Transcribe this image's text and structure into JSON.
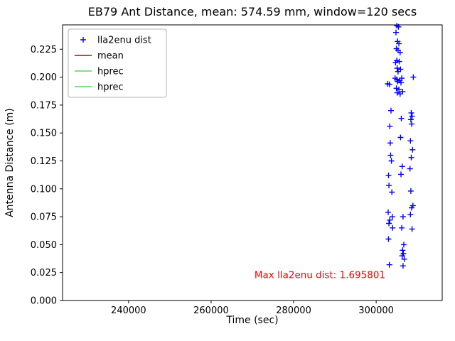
{
  "chart_data": {
    "type": "scatter",
    "title": "EB79 Ant Distance, mean: 574.59 mm, window=120 secs",
    "xlabel": "Time (sec)",
    "ylabel": "Antenna Distance (m)",
    "xlim": [
      224000,
      316000
    ],
    "ylim": [
      0,
      0.2468
    ],
    "xticks": [
      240000,
      260000,
      280000,
      300000
    ],
    "yticks": [
      0.0,
      0.025,
      0.05,
      0.075,
      0.1,
      0.125,
      0.15,
      0.175,
      0.2,
      0.225
    ],
    "grid": false,
    "marker": "plus",
    "marker_color": "#0000ff",
    "legend_position": "upper-left",
    "legend": [
      {
        "label": "lla2enu dist",
        "marker": "plus",
        "color": "#0000ff"
      },
      {
        "label": "mean",
        "marker": "line",
        "color": "#8b1a1a"
      },
      {
        "label": "hprec",
        "marker": "line",
        "color": "#5fd35f"
      },
      {
        "label": "hprec",
        "marker": "line",
        "color": "#5fd35f"
      }
    ],
    "annotation": {
      "text": "Max lla2enu dist: 1.695801",
      "color": "#ff0000",
      "x": 270500,
      "y": 0.02
    },
    "points": [
      [
        302800,
        0.194
      ],
      [
        303200,
        0.1935
      ],
      [
        303000,
        0.112
      ],
      [
        303100,
        0.103
      ],
      [
        302900,
        0.079
      ],
      [
        303300,
        0.072
      ],
      [
        303100,
        0.069
      ],
      [
        303000,
        0.055
      ],
      [
        303200,
        0.032
      ],
      [
        303400,
        0.141
      ],
      [
        303500,
        0.13
      ],
      [
        303600,
        0.17
      ],
      [
        303300,
        0.156
      ],
      [
        303800,
        0.097
      ],
      [
        303900,
        0.075
      ],
      [
        304000,
        0.065
      ],
      [
        303700,
        0.125
      ],
      [
        305000,
        0.246
      ],
      [
        305400,
        0.245
      ],
      [
        304800,
        0.24
      ],
      [
        305200,
        0.232
      ],
      [
        305500,
        0.23
      ],
      [
        304900,
        0.2255
      ],
      [
        305300,
        0.224
      ],
      [
        305800,
        0.222
      ],
      [
        305000,
        0.215
      ],
      [
        305600,
        0.214
      ],
      [
        304700,
        0.213
      ],
      [
        305100,
        0.208
      ],
      [
        305900,
        0.207
      ],
      [
        305300,
        0.205
      ],
      [
        304600,
        0.199
      ],
      [
        305000,
        0.198
      ],
      [
        305700,
        0.197
      ],
      [
        305200,
        0.196
      ],
      [
        306000,
        0.195
      ],
      [
        304900,
        0.19
      ],
      [
        305500,
        0.189
      ],
      [
        305100,
        0.186
      ],
      [
        305800,
        0.185
      ],
      [
        306200,
        0.199
      ],
      [
        306400,
        0.187
      ],
      [
        306100,
        0.163
      ],
      [
        305900,
        0.146
      ],
      [
        306300,
        0.12
      ],
      [
        306000,
        0.113
      ],
      [
        306500,
        0.075
      ],
      [
        306200,
        0.065
      ],
      [
        306700,
        0.05
      ],
      [
        306400,
        0.045
      ],
      [
        306600,
        0.042
      ],
      [
        306300,
        0.04
      ],
      [
        306800,
        0.037
      ],
      [
        306500,
        0.031
      ],
      [
        309000,
        0.2
      ],
      [
        308500,
        0.168
      ],
      [
        308700,
        0.165
      ],
      [
        308400,
        0.162
      ],
      [
        308600,
        0.158
      ],
      [
        308300,
        0.143
      ],
      [
        308800,
        0.135
      ],
      [
        308500,
        0.128
      ],
      [
        308200,
        0.118
      ],
      [
        308400,
        0.098
      ],
      [
        308900,
        0.085
      ],
      [
        308600,
        0.083
      ],
      [
        308300,
        0.077
      ],
      [
        308700,
        0.064
      ]
    ]
  }
}
